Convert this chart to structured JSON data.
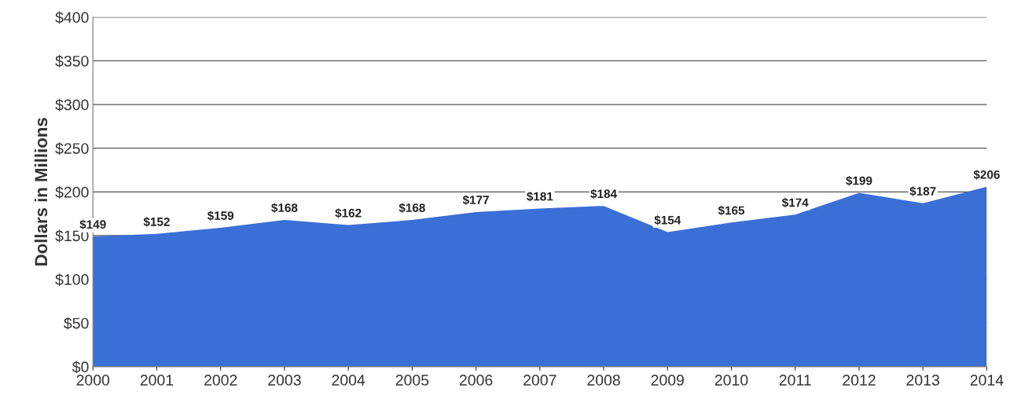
{
  "chart_data": {
    "type": "area",
    "ylabel": "Dollars in Millions",
    "x": [
      2000,
      2001,
      2002,
      2003,
      2004,
      2005,
      2006,
      2007,
      2008,
      2009,
      2010,
      2011,
      2012,
      2013,
      2014
    ],
    "series": [
      {
        "color": "#3a6fd6",
        "values": [
          149,
          152,
          159,
          168,
          162,
          168,
          177,
          181,
          184,
          154,
          165,
          174,
          199,
          187,
          206
        ],
        "value_labels": [
          "$149",
          "$152",
          "$159",
          "$168",
          "$162",
          "$168",
          "$177",
          "$181",
          "$184",
          "$154",
          "$165",
          "$174",
          "$199",
          "$187",
          "$206"
        ]
      }
    ],
    "xlim": [
      2000,
      2014
    ],
    "xticks": [
      2000,
      2001,
      2002,
      2003,
      2004,
      2005,
      2006,
      2007,
      2008,
      2009,
      2010,
      2011,
      2012,
      2013,
      2014
    ],
    "ylim": [
      0,
      400
    ],
    "yticks": [
      {
        "value": 0,
        "label": "$0"
      },
      {
        "value": 50,
        "label": "$50"
      },
      {
        "value": 100,
        "label": "$100"
      },
      {
        "value": 150,
        "label": "$150"
      },
      {
        "value": 200,
        "label": "$200"
      },
      {
        "value": 250,
        "label": "$250"
      },
      {
        "value": 300,
        "label": "$300"
      },
      {
        "value": 350,
        "label": "$350"
      },
      {
        "value": 400,
        "label": "$400"
      }
    ],
    "grid": "y"
  }
}
